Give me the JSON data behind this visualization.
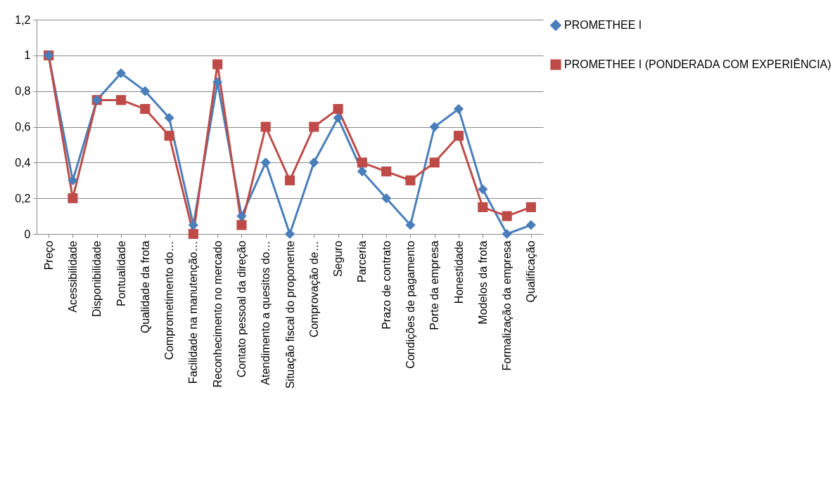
{
  "chart_data": {
    "type": "line",
    "categories": [
      "Preço",
      "Acessibilidade",
      "Disponibilidade",
      "Pontualidade",
      "Qualidade da frota",
      "Comprometimento do…",
      "Facilidade na manutenção…",
      "Reconhecimento no mercado",
      "Contato pessoal da direção",
      "Atendimento a quesitos do…",
      "Situação fiscal do proponente",
      "Comprovação de…",
      "Seguro",
      "Parceria",
      "Prazo de contrato",
      "Condições de pagamento",
      "Porte da empresa",
      "Honestidade",
      "Modelos da frota",
      "Formalização da empresa",
      "Qualificação"
    ],
    "series": [
      {
        "name": "PROMETHEE I",
        "color": "#4a7ebb",
        "marker": "diamond",
        "values": [
          1,
          0.3,
          0.75,
          0.9,
          0.8,
          0.65,
          0.05,
          0.85,
          0.1,
          0.4,
          0,
          0.4,
          0.65,
          0.35,
          0.2,
          0.05,
          0.6,
          0.7,
          0.25,
          0,
          0.05
        ]
      },
      {
        "name": "PROMETHEE I (PONDERADA COM EXPERIÊNCIA)",
        "color": "#be4b48",
        "marker": "square",
        "values": [
          1,
          0.2,
          0.75,
          0.75,
          0.7,
          0.55,
          0,
          0.95,
          0.05,
          0.6,
          0.3,
          0.6,
          0.7,
          0.4,
          0.35,
          0.3,
          0.4,
          0.55,
          0.15,
          0.1,
          0.15
        ]
      }
    ],
    "ylim": [
      0,
      1.2
    ],
    "yticks": [
      0,
      {
        "value": 0.2,
        "label": "0,2"
      },
      {
        "value": 0.4,
        "label": "0,4"
      },
      {
        "value": 0.6,
        "label": "0,6"
      },
      {
        "value": 0.8,
        "label": "0,8"
      },
      1,
      {
        "value": 1.2,
        "label": "1,2"
      }
    ],
    "grid": "y",
    "legend": "right"
  }
}
